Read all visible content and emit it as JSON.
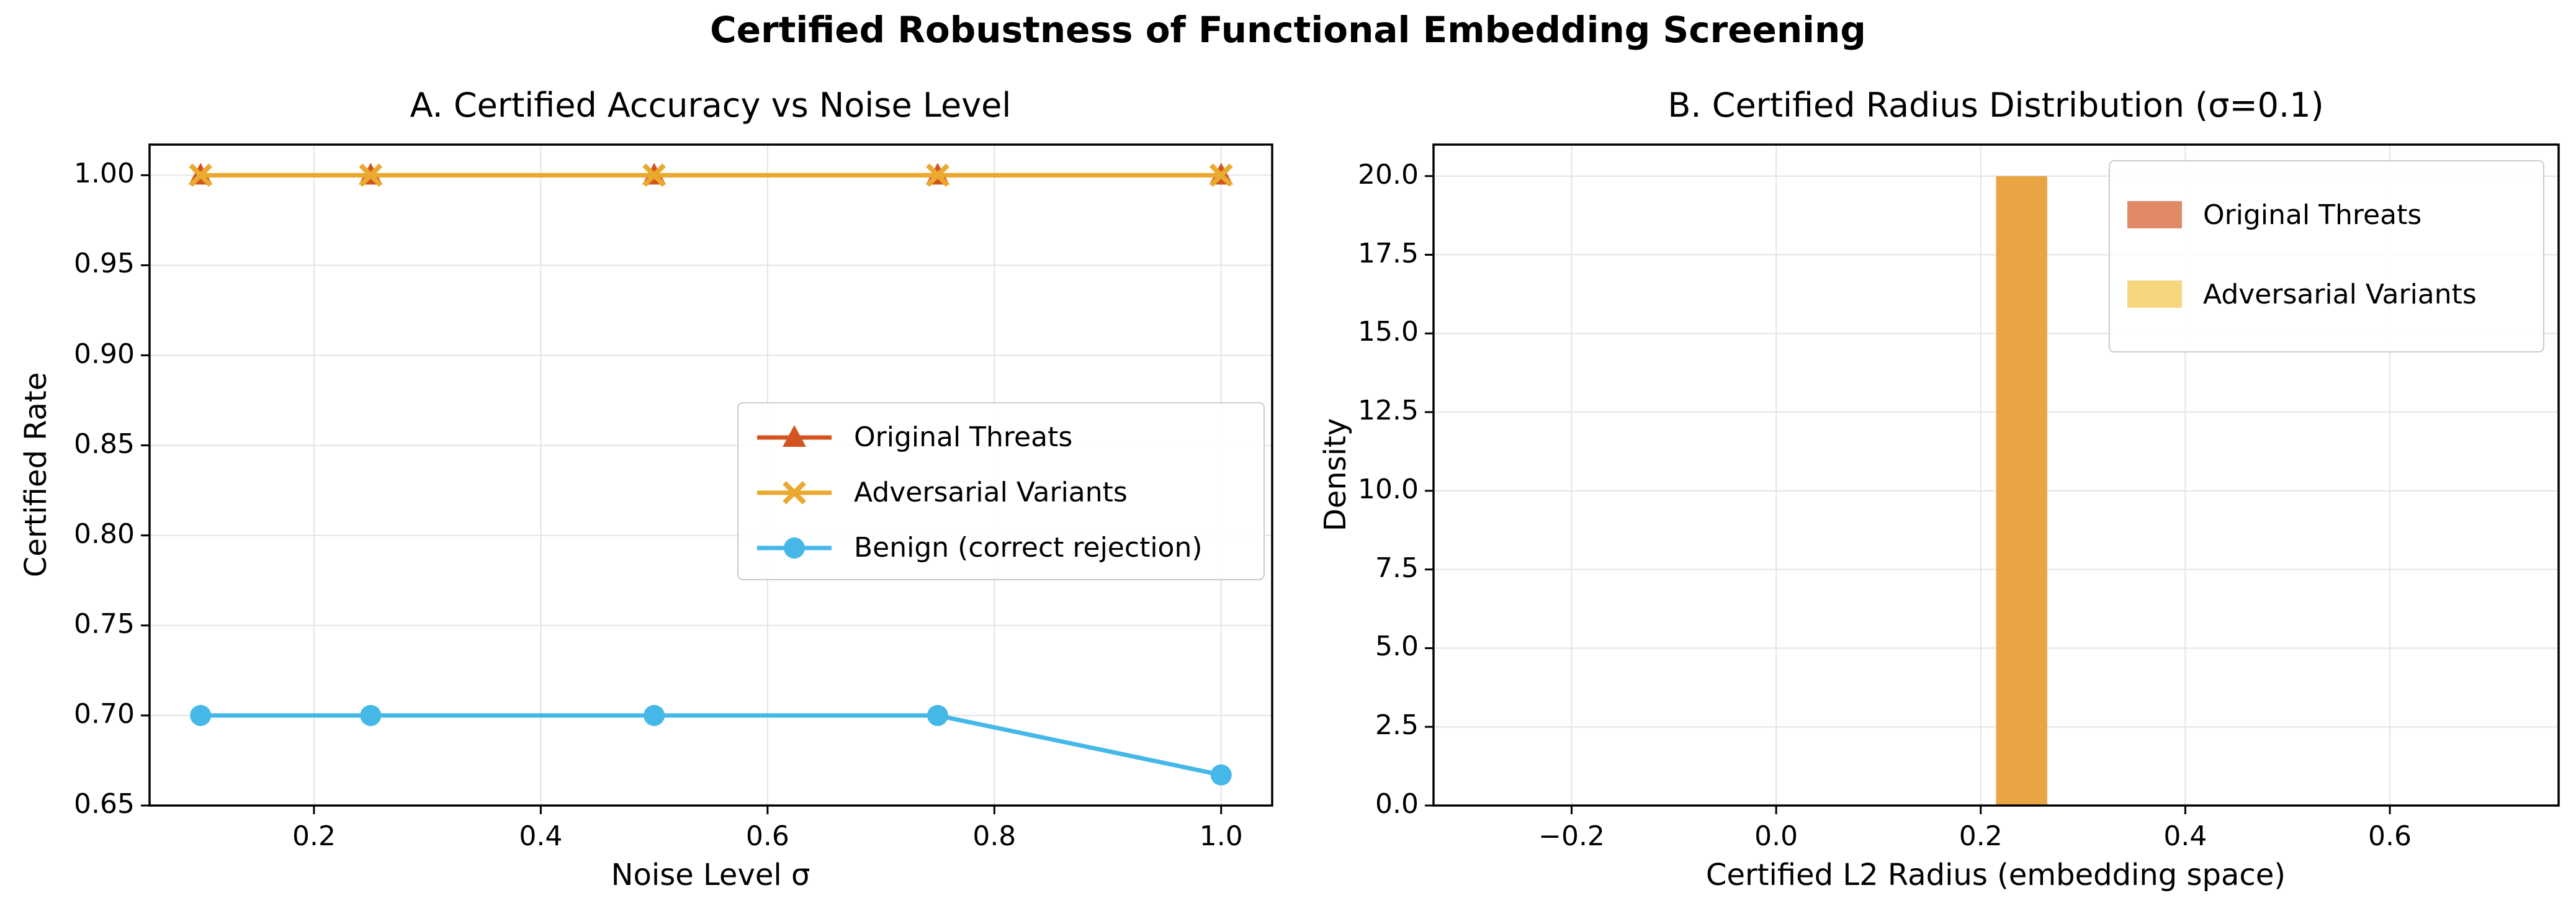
{
  "figure": {
    "suptitle": "Certified Robustness of Functional Embedding Screening",
    "background": "#ffffff"
  },
  "chart_data": [
    {
      "type": "line",
      "title": "A. Certified Accuracy vs Noise Level",
      "xlabel": "Noise Level σ",
      "ylabel": "Certified Rate",
      "x": [
        0.1,
        0.25,
        0.5,
        0.75,
        1.0
      ],
      "series": [
        {
          "name": "Original Threats",
          "values": [
            1.0,
            1.0,
            1.0,
            1.0,
            1.0
          ],
          "color": "#d4541f",
          "marker": "triangle"
        },
        {
          "name": "Adversarial Variants",
          "values": [
            1.0,
            1.0,
            1.0,
            1.0,
            1.0
          ],
          "color": "#eaa92f",
          "marker": "x"
        },
        {
          "name": "Benign (correct rejection)",
          "values": [
            0.7,
            0.7,
            0.7,
            0.7,
            0.667
          ],
          "color": "#45b8e8",
          "marker": "circle"
        }
      ],
      "xlim": [
        0.055,
        1.045
      ],
      "ylim": [
        0.65,
        1.017
      ],
      "xticks": [
        {
          "v": 0.2,
          "label": "0.2"
        },
        {
          "v": 0.4,
          "label": "0.4"
        },
        {
          "v": 0.6,
          "label": "0.6"
        },
        {
          "v": 0.8,
          "label": "0.8"
        },
        {
          "v": 1.0,
          "label": "1.0"
        }
      ],
      "yticks": [
        {
          "v": 0.65,
          "label": "0.65"
        },
        {
          "v": 0.7,
          "label": "0.70"
        },
        {
          "v": 0.75,
          "label": "0.75"
        },
        {
          "v": 0.8,
          "label": "0.80"
        },
        {
          "v": 0.85,
          "label": "0.85"
        },
        {
          "v": 0.9,
          "label": "0.90"
        },
        {
          "v": 0.95,
          "label": "0.95"
        },
        {
          "v": 1.0,
          "label": "1.00"
        }
      ],
      "grid": true,
      "legend_position": "center-right"
    },
    {
      "type": "histogram",
      "title": "B. Certified Radius Distribution (σ=0.1)",
      "xlabel": "Certified L2 Radius (embedding space)",
      "ylabel": "Density",
      "series": [
        {
          "name": "Original Threats",
          "color": "#e08a68"
        },
        {
          "name": "Adversarial Variants",
          "color": "#f6d67e"
        }
      ],
      "bars": [
        {
          "left": 0.215,
          "right": 0.265,
          "density": 20.0
        }
      ],
      "overlap_color": "#e9a443",
      "note": "both distributions coincide in a single bin, overlapping to orange",
      "xlim": [
        -0.335,
        0.765
      ],
      "ylim": [
        0,
        21
      ],
      "xticks": [
        {
          "v": -0.2,
          "label": "−0.2"
        },
        {
          "v": 0.0,
          "label": "0.0"
        },
        {
          "v": 0.2,
          "label": "0.2"
        },
        {
          "v": 0.4,
          "label": "0.4"
        },
        {
          "v": 0.6,
          "label": "0.6"
        }
      ],
      "yticks": [
        {
          "v": 0.0,
          "label": "0.0"
        },
        {
          "v": 2.5,
          "label": "2.5"
        },
        {
          "v": 5.0,
          "label": "5.0"
        },
        {
          "v": 7.5,
          "label": "7.5"
        },
        {
          "v": 10.0,
          "label": "10.0"
        },
        {
          "v": 12.5,
          "label": "12.5"
        },
        {
          "v": 15.0,
          "label": "15.0"
        },
        {
          "v": 17.5,
          "label": "17.5"
        },
        {
          "v": 20.0,
          "label": "20.0"
        }
      ],
      "grid": true,
      "legend_position": "upper-right"
    }
  ]
}
